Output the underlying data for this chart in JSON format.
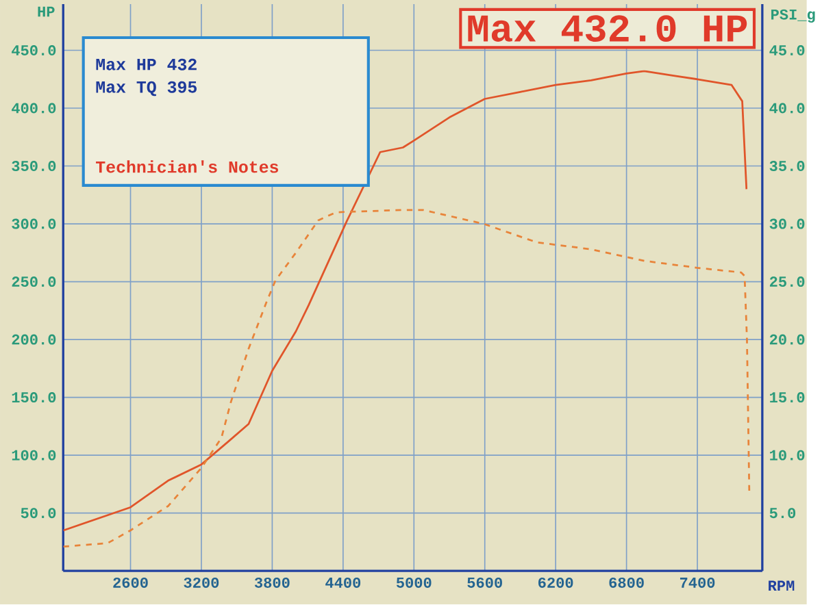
{
  "chart_data": {
    "type": "line",
    "title": "Max 432.0 HP",
    "xlabel": "RPM",
    "ylabel": "HP",
    "y2label": "PSI_g",
    "annotations": [
      "Max HP 432",
      "Max TQ 395",
      "Technician's Notes"
    ],
    "series": [
      {
        "color": "#e0552a",
        "line_style": "solid",
        "x": [
          2032,
          2600,
          2918,
          3200,
          3430,
          3600,
          3800,
          4000,
          4110,
          4430,
          4714,
          4907,
          5000,
          5300,
          5600,
          5900,
          6200,
          6500,
          6800,
          6950,
          7200,
          7400,
          7690,
          7780,
          7816
        ],
        "values": [
          35,
          55,
          78,
          92,
          112,
          127,
          173,
          207,
          230,
          302,
          362,
          366,
          372,
          392,
          408,
          414,
          420,
          424,
          430,
          432,
          428,
          425,
          420,
          406,
          330
        ]
      },
      {
        "color": "#e8843a",
        "line_style": "dashed",
        "axis": "y2",
        "x": [
          2032,
          2407,
          2600,
          2918,
          3200,
          3370,
          3450,
          3600,
          3750,
          3827,
          4000,
          4190,
          4340,
          4907,
          5077,
          5590,
          6040,
          6500,
          6950,
          7400,
          7770,
          7800,
          7820,
          7840
        ],
        "values": [
          2.1,
          2.4,
          3.5,
          5.6,
          8.9,
          11.5,
          14.6,
          19.2,
          23.2,
          25.1,
          27.5,
          30.3,
          31.0,
          31.2,
          31.2,
          30.0,
          28.4,
          27.8,
          26.8,
          26.2,
          25.8,
          25.5,
          20.0,
          6.6
        ]
      }
    ],
    "xlim": [
      2030,
      7950
    ],
    "ylim": [
      0,
      490
    ],
    "y2lim": [
      0,
      49
    ],
    "xticks": [
      2600,
      3200,
      3800,
      4400,
      5000,
      5600,
      6200,
      6800,
      7400
    ],
    "yticks": [
      {
        "value": 50,
        "label": "50.0"
      },
      {
        "value": 100,
        "label": "100.0"
      },
      {
        "value": 150,
        "label": "150.0"
      },
      {
        "value": 200,
        "label": "200.0"
      },
      {
        "value": 250,
        "label": "250.0"
      },
      {
        "value": 300,
        "label": "300.0"
      },
      {
        "value": 350,
        "label": "350.0"
      },
      {
        "value": 400,
        "label": "400.0"
      },
      {
        "value": 450,
        "label": "450.0"
      }
    ],
    "y2ticks": [
      {
        "value": 5,
        "label": "5.0"
      },
      {
        "value": 10,
        "label": "10.0"
      },
      {
        "value": 15,
        "label": "15.0"
      },
      {
        "value": 20,
        "label": "20.0"
      },
      {
        "value": 25,
        "label": "25.0"
      },
      {
        "value": 30,
        "label": "30.0"
      },
      {
        "value": 35,
        "label": "35.0"
      },
      {
        "value": 40,
        "label": "40.0"
      },
      {
        "value": 45,
        "label": "45.0"
      }
    ],
    "grid": true
  }
}
